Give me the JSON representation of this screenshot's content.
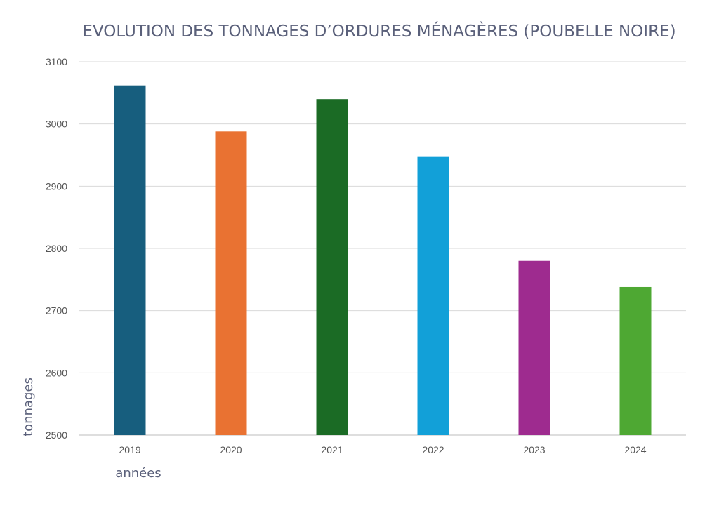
{
  "chart_data": {
    "type": "bar",
    "title": "EVOLUTION DES TONNAGES D’ORDURES MÉNAGÈRES (POUBELLE NOIRE)",
    "xlabel": "années",
    "ylabel": "tonnages",
    "categories": [
      "2019",
      "2020",
      "2021",
      "2022",
      "2023",
      "2024"
    ],
    "values": [
      3062,
      2988,
      3040,
      2947,
      2780,
      2738
    ],
    "colors": [
      "#175e7e",
      "#e97232",
      "#1b6b25",
      "#12a0d8",
      "#9e2b8f",
      "#4ea833"
    ],
    "ylim": [
      2500,
      3100
    ],
    "yticks": [
      2500,
      2600,
      2700,
      2800,
      2900,
      3000,
      3100
    ],
    "grid": true,
    "legend": "none"
  }
}
